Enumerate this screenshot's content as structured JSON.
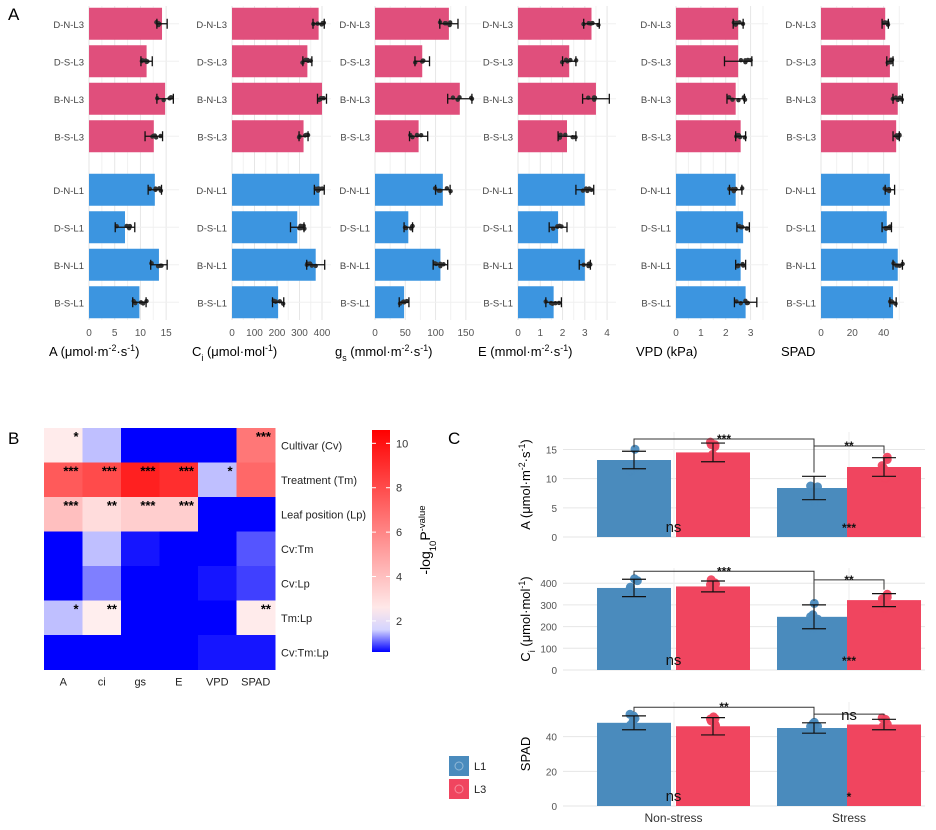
{
  "colors": {
    "pink": "#e04f7c",
    "blue": "#3c95e0",
    "c_l1": "#4a8bbd",
    "c_l3": "#f0455f",
    "grid": "#e6e6e6",
    "axis": "#444444",
    "heat_low": "#0000ff",
    "heat_mid": "#ffffff",
    "heat_high": "#ff0000"
  },
  "panel_labels": {
    "a": "A",
    "b": "B",
    "c": "C"
  },
  "chart_data": [
    {
      "id": "panelA",
      "type": "bar",
      "orientation": "horizontal",
      "categories": [
        "D-N-L3",
        "D-S-L3",
        "B-N-L3",
        "B-S-L3",
        "D-N-L1",
        "D-S-L1",
        "B-N-L1",
        "B-S-L1"
      ],
      "groups": [
        "L3",
        "L3",
        "L3",
        "L3",
        "L1",
        "L1",
        "L1",
        "L1"
      ],
      "facets": [
        {
          "name": "A",
          "xlabel_parts": [
            "A (μmol·m",
            "-2",
            "·s",
            "-1",
            ")"
          ],
          "xlim": [
            0,
            17.5
          ],
          "ticks": [
            "0",
            "5",
            "10",
            "15"
          ],
          "tick_values": [
            0,
            5,
            10,
            15
          ],
          "values": [
            14.2,
            11.2,
            14.8,
            12.6,
            12.8,
            7.0,
            13.6,
            9.8
          ],
          "errors": [
            1.0,
            1.1,
            1.6,
            1.7,
            1.3,
            1.9,
            1.6,
            1.3
          ]
        },
        {
          "name": "Ci",
          "xlabel_parts": [
            "C",
            "i",
            " (μmol·mol",
            "-1",
            ")"
          ],
          "xlim": [
            0,
            440
          ],
          "ticks": [
            "0",
            "100",
            "200",
            "300",
            "400"
          ],
          "tick_values": [
            0,
            100,
            200,
            300,
            400
          ],
          "values": [
            385,
            335,
            400,
            318,
            388,
            290,
            372,
            205
          ],
          "errors": [
            25,
            20,
            20,
            20,
            22,
            30,
            40,
            25
          ]
        },
        {
          "name": "gs",
          "xlabel_parts": [
            "g",
            "s",
            " (mmol·m",
            "-2",
            "·s",
            "-1",
            ")"
          ],
          "xlim": [
            0,
            175
          ],
          "ticks": [
            "0",
            "50",
            "100",
            "150"
          ],
          "tick_values": [
            0,
            50,
            100,
            150
          ],
          "values": [
            122,
            78,
            140,
            72,
            112,
            55,
            108,
            48
          ],
          "errors": [
            15,
            12,
            20,
            15,
            12,
            7,
            12,
            8
          ]
        },
        {
          "name": "E",
          "xlabel_parts": [
            "E (mmol·m",
            "-2",
            "·s",
            "-1",
            ")"
          ],
          "xlim": [
            0,
            4.4
          ],
          "ticks": [
            "0",
            "1",
            "2",
            "3",
            "4"
          ],
          "tick_values": [
            0,
            1,
            2,
            3,
            4
          ],
          "values": [
            3.3,
            2.3,
            3.5,
            2.2,
            3.0,
            1.8,
            3.0,
            1.6
          ],
          "errors": [
            0.35,
            0.3,
            0.6,
            0.4,
            0.4,
            0.4,
            0.25,
            0.35
          ]
        },
        {
          "name": "VPD",
          "xlabel_parts": [
            "VPD (kPa)"
          ],
          "xlim": [
            0,
            3.7
          ],
          "ticks": [
            "0",
            "1",
            "2",
            "3"
          ],
          "tick_values": [
            0,
            1,
            2,
            3
          ],
          "values": [
            2.5,
            2.5,
            2.4,
            2.6,
            2.4,
            2.7,
            2.6,
            2.8
          ],
          "errors": [
            0.2,
            0.55,
            0.35,
            0.2,
            0.25,
            0.25,
            0.2,
            0.45
          ]
        },
        {
          "name": "SPAD",
          "xlabel_parts": [
            "SPAD"
          ],
          "xlim": [
            0,
            53
          ],
          "ticks": [
            "0",
            "20",
            "40"
          ],
          "tick_values": [
            0,
            20,
            40
          ],
          "values": [
            41,
            44,
            49,
            48,
            44,
            42,
            49,
            46
          ],
          "errors": [
            2,
            2,
            3,
            2,
            3,
            3,
            3,
            2
          ]
        }
      ]
    },
    {
      "id": "panelB",
      "type": "heatmap",
      "columns": [
        "A",
        "ci",
        "gs",
        "E",
        "VPD",
        "SPAD"
      ],
      "rows": [
        "Cultivar (Cv)",
        "Treatment (Tm)",
        "Leaf position (Lp)",
        "Cv:Tm",
        "Cv:Lp",
        "Tm:Lp",
        "Cv:Tm:Lp"
      ],
      "values": [
        [
          2.5,
          1.5,
          0.1,
          0.1,
          0.6,
          6.5
        ],
        [
          7.5,
          8.0,
          9.5,
          9.0,
          1.5,
          7.0
        ],
        [
          4.0,
          3.0,
          3.5,
          3.5,
          0.6,
          0.3
        ],
        [
          0.4,
          1.5,
          0.7,
          0.3,
          0.3,
          1.0
        ],
        [
          0.2,
          1.2,
          0.6,
          0.5,
          0.7,
          0.9
        ],
        [
          1.5,
          2.4,
          0.3,
          0.1,
          0.2,
          2.5
        ],
        [
          0.4,
          0.5,
          0.6,
          0.2,
          0.7,
          0.7
        ]
      ],
      "stars": [
        [
          "*",
          "",
          "",
          "",
          "",
          "***"
        ],
        [
          "***",
          "***",
          "***",
          "***",
          "*",
          ""
        ],
        [
          "***",
          "**",
          "***",
          "***",
          "",
          ""
        ],
        [
          "",
          "",
          "",
          "",
          "",
          ""
        ],
        [
          "",
          "",
          "",
          "",
          "",
          ""
        ],
        [
          "*",
          "**",
          "",
          "",
          "",
          "**"
        ],
        [
          "",
          "",
          "",
          "",
          "",
          ""
        ]
      ],
      "colorbar": {
        "min": 0.6,
        "max": 10.6,
        "ticks": [
          "2",
          "4",
          "6",
          "8",
          "10"
        ],
        "tick_values": [
          2,
          4,
          6,
          8,
          10
        ],
        "label_parts": [
          "-log",
          "10",
          "P",
          "-value"
        ]
      }
    },
    {
      "id": "panelC",
      "type": "bar",
      "categories": [
        "Non-stress",
        "Stress"
      ],
      "legend": [
        "L1",
        "L3"
      ],
      "subplots": [
        {
          "ylabel_parts": [
            "A (μmol·m",
            "-2",
            "·s",
            "-1",
            ")"
          ],
          "ylim": [
            0,
            18
          ],
          "ticks": [
            "0",
            "5",
            "10",
            "15"
          ],
          "tick_values": [
            0,
            5,
            10,
            15
          ],
          "L1": [
            13.2,
            8.4
          ],
          "L3": [
            14.5,
            12.0
          ],
          "err_L1": [
            1.5,
            2.0
          ],
          "err_L3": [
            1.6,
            1.6
          ],
          "brackets": [
            {
              "label": "***",
              "from": 0,
              "to": 2,
              "level": 16.8
            },
            {
              "label": "**",
              "from": 2,
              "to": 3,
              "level": 15.6
            }
          ],
          "inner": [
            {
              "label": "ns",
              "at": 0.5
            },
            {
              "label": "***",
              "at": 2.5
            }
          ]
        },
        {
          "ylabel_parts": [
            "C",
            "i",
            " (μmol·mol",
            "-1",
            ")"
          ],
          "ylim": [
            0,
            470
          ],
          "ticks": [
            "0",
            "100",
            "200",
            "300",
            "400"
          ],
          "tick_values": [
            0,
            100,
            200,
            300,
            400
          ],
          "L1": [
            378,
            245
          ],
          "L3": [
            385,
            322
          ],
          "err_L1": [
            40,
            55
          ],
          "err_L3": [
            25,
            30
          ],
          "brackets": [
            {
              "label": "***",
              "from": 0,
              "to": 2,
              "level": 455
            },
            {
              "label": "**",
              "from": 2,
              "to": 3,
              "level": 415
            }
          ],
          "inner": [
            {
              "label": "ns",
              "at": 0.5
            },
            {
              "label": "***",
              "at": 2.5
            }
          ]
        },
        {
          "ylabel_parts": [
            "SPAD"
          ],
          "ylim": [
            0,
            60
          ],
          "ticks": [
            "0",
            "20",
            "40"
          ],
          "tick_values": [
            0,
            20,
            40
          ],
          "L1": [
            48,
            45
          ],
          "L3": [
            46,
            47
          ],
          "err_L1": [
            4,
            3
          ],
          "err_L3": [
            5,
            3
          ],
          "brackets": [
            {
              "label": "**",
              "from": 0,
              "to": 2,
              "level": 57
            },
            {
              "label": "ns",
              "from": 2,
              "to": 3,
              "level": 53
            }
          ],
          "inner": [
            {
              "label": "ns",
              "at": 0.5
            },
            {
              "label": "*",
              "at": 2.5
            }
          ]
        }
      ]
    }
  ]
}
